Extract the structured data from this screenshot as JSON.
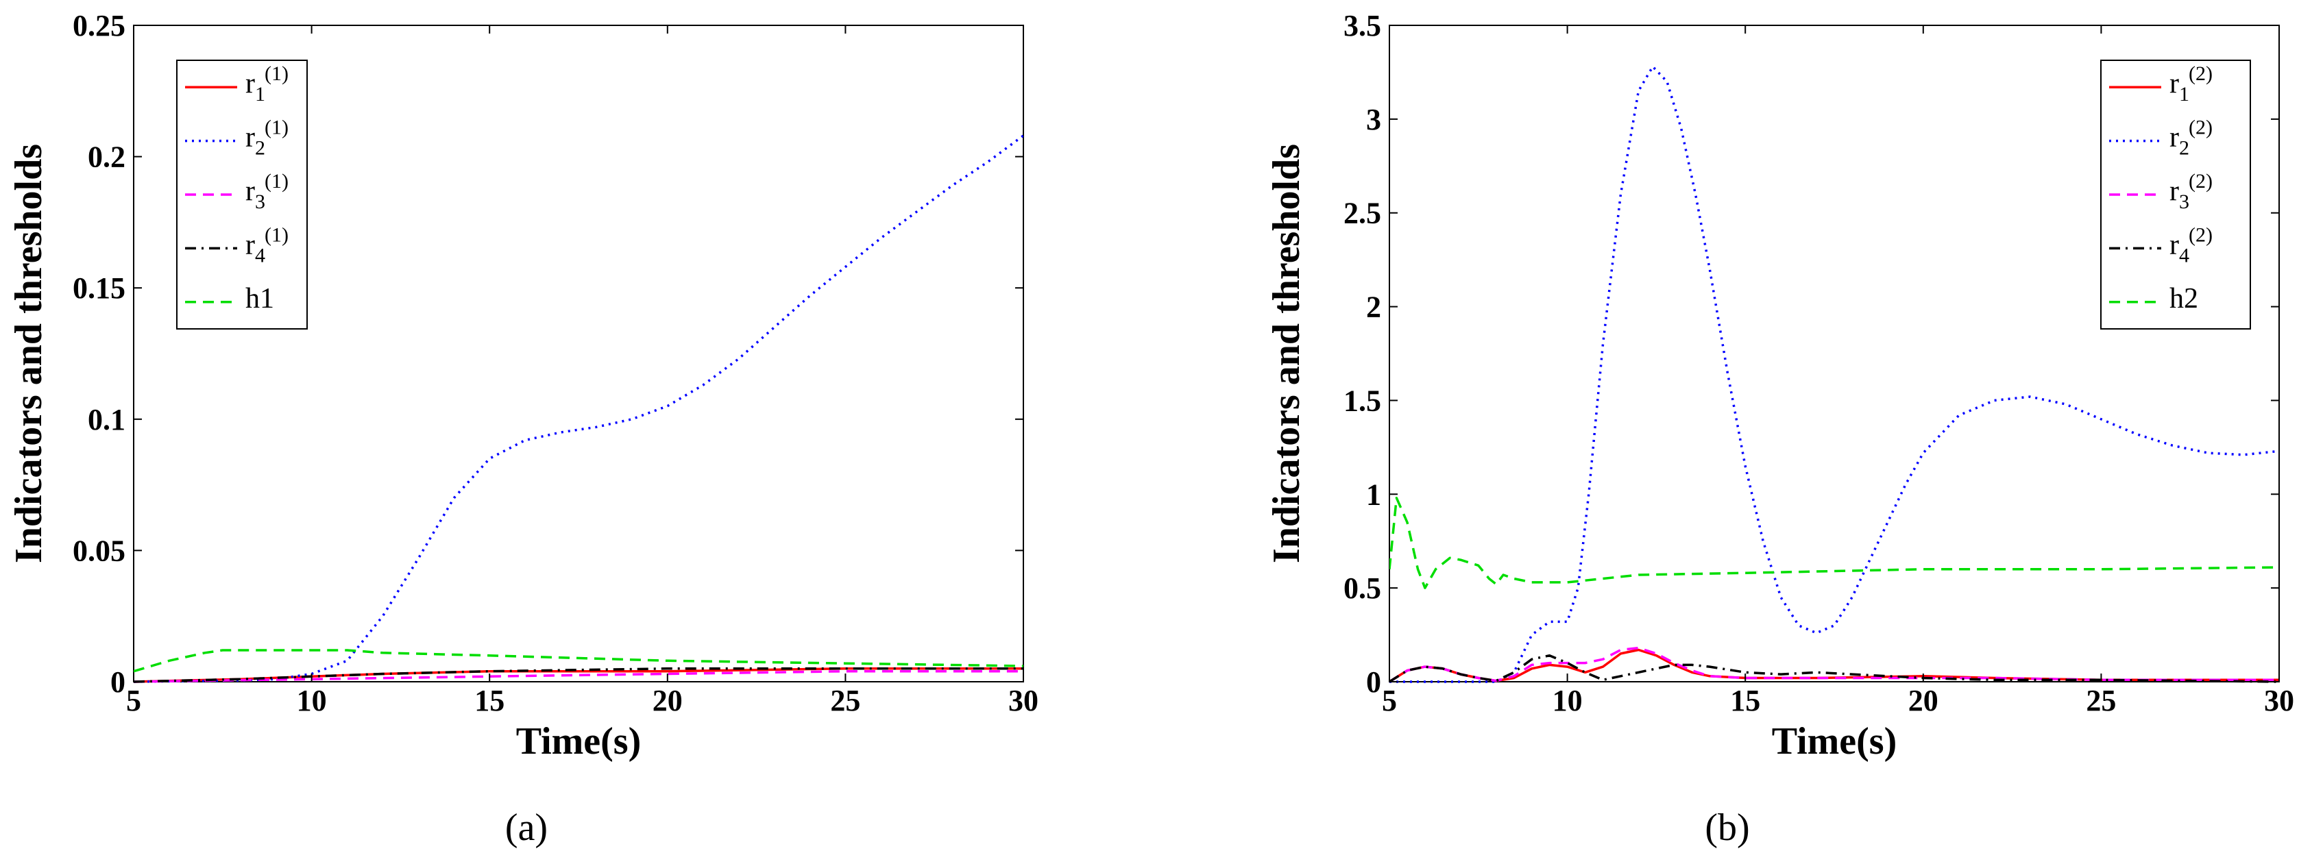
{
  "chart_data": [
    {
      "type": "line",
      "panel": "a",
      "caption": "(a)",
      "xlabel": "Time(s)",
      "ylabel": "Indicators and thresholds",
      "xlim": [
        5,
        30
      ],
      "ylim": [
        0,
        0.25
      ],
      "xticks": [
        5,
        10,
        15,
        20,
        25,
        30
      ],
      "xtick_labels": [
        "5",
        "10",
        "15",
        "20",
        "25",
        "30"
      ],
      "yticks": [
        0,
        0.05,
        0.1,
        0.15,
        0.2,
        0.25
      ],
      "ytick_labels": [
        "0",
        "0.05",
        "0.1",
        "0.15",
        "0.2",
        "0.25"
      ],
      "grid": false,
      "legend_position": "top-left",
      "series": [
        {
          "name": "r",
          "sub": "1",
          "sup": "(1)",
          "color": "#ff0000",
          "dash": "solid",
          "x": [
            5,
            8,
            10,
            12,
            15,
            20,
            25,
            30
          ],
          "y": [
            0,
            0.001,
            0.002,
            0.003,
            0.004,
            0.004,
            0.005,
            0.005
          ]
        },
        {
          "name": "r",
          "sub": "2",
          "sup": "(1)",
          "color": "#0000ff",
          "dash": "dot",
          "x": [
            5,
            8,
            9,
            10,
            11,
            12,
            13,
            14,
            15,
            16,
            17,
            18,
            19,
            20,
            21,
            22,
            23,
            24,
            25,
            26,
            27,
            28,
            29,
            30
          ],
          "y": [
            0,
            0.0005,
            0.001,
            0.003,
            0.008,
            0.025,
            0.047,
            0.07,
            0.085,
            0.092,
            0.095,
            0.097,
            0.1,
            0.105,
            0.113,
            0.123,
            0.135,
            0.147,
            0.158,
            0.169,
            0.179,
            0.189,
            0.198,
            0.208
          ]
        },
        {
          "name": "r",
          "sub": "3",
          "sup": "(1)",
          "color": "#ff00ff",
          "dash": "dash",
          "x": [
            5,
            10,
            15,
            20,
            25,
            30
          ],
          "y": [
            0,
            0.001,
            0.002,
            0.003,
            0.004,
            0.004
          ]
        },
        {
          "name": "r",
          "sub": "4",
          "sup": "(1)",
          "color": "#000000",
          "dash": "dashdot",
          "x": [
            5,
            8,
            10,
            12,
            15,
            20,
            25,
            30
          ],
          "y": [
            0,
            0.001,
            0.002,
            0.003,
            0.004,
            0.005,
            0.005,
            0.005
          ]
        },
        {
          "name": "h1",
          "sub": "",
          "sup": "",
          "color": "#00dd00",
          "dash": "dash",
          "x": [
            5,
            6,
            7,
            7.5,
            8,
            10,
            11,
            12,
            15,
            20,
            25,
            30
          ],
          "y": [
            0.004,
            0.008,
            0.011,
            0.012,
            0.012,
            0.012,
            0.012,
            0.011,
            0.01,
            0.008,
            0.007,
            0.006
          ]
        }
      ]
    },
    {
      "type": "line",
      "panel": "b",
      "caption": "(b)",
      "xlabel": "Time(s)",
      "ylabel": "Indicators and thresholds",
      "xlim": [
        5,
        30
      ],
      "ylim": [
        0,
        3.5
      ],
      "xticks": [
        5,
        10,
        15,
        20,
        25,
        30
      ],
      "xtick_labels": [
        "5",
        "10",
        "15",
        "20",
        "25",
        "30"
      ],
      "yticks": [
        0,
        0.5,
        1,
        1.5,
        2,
        2.5,
        3,
        3.5
      ],
      "ytick_labels": [
        "0",
        "0.5",
        "1",
        "1.5",
        "2",
        "2.5",
        "3",
        "3.5"
      ],
      "grid": false,
      "legend_position": "top-right",
      "series": [
        {
          "name": "r",
          "sub": "1",
          "sup": "(2)",
          "color": "#ff0000",
          "dash": "solid",
          "x": [
            5,
            5.5,
            6,
            6.5,
            7,
            7.5,
            8,
            8.5,
            9,
            9.5,
            10,
            10.5,
            11,
            11.5,
            12,
            12.5,
            13,
            13.5,
            14,
            15,
            17,
            20,
            22,
            25,
            30
          ],
          "y": [
            0,
            0.06,
            0.08,
            0.07,
            0.04,
            0.02,
            0.005,
            0.02,
            0.07,
            0.09,
            0.08,
            0.05,
            0.08,
            0.15,
            0.17,
            0.14,
            0.09,
            0.05,
            0.03,
            0.02,
            0.02,
            0.03,
            0.02,
            0.01,
            0.01
          ]
        },
        {
          "name": "r",
          "sub": "2",
          "sup": "(2)",
          "color": "#0000ff",
          "dash": "dot",
          "x": [
            5,
            8,
            8.5,
            9,
            9.5,
            10,
            10.3,
            10.6,
            11,
            11.5,
            12,
            12.4,
            12.8,
            13.2,
            13.6,
            14,
            14.5,
            15,
            15.5,
            16,
            16.5,
            17,
            17.5,
            18,
            18.5,
            19,
            19.5,
            20,
            21,
            22,
            23,
            24,
            25,
            26,
            27,
            28,
            29,
            30
          ],
          "y": [
            0,
            0,
            0.05,
            0.25,
            0.32,
            0.32,
            0.5,
            1.0,
            1.8,
            2.6,
            3.15,
            3.28,
            3.2,
            2.95,
            2.6,
            2.2,
            1.65,
            1.15,
            0.75,
            0.45,
            0.3,
            0.26,
            0.3,
            0.45,
            0.65,
            0.85,
            1.05,
            1.22,
            1.42,
            1.5,
            1.52,
            1.48,
            1.4,
            1.32,
            1.26,
            1.22,
            1.21,
            1.23
          ]
        },
        {
          "name": "r",
          "sub": "3",
          "sup": "(2)",
          "color": "#ff00ff",
          "dash": "dash",
          "x": [
            5,
            5.5,
            6,
            6.5,
            7,
            7.5,
            8,
            8.5,
            9,
            9.5,
            10,
            10.5,
            11,
            11.5,
            12,
            12.5,
            13,
            13.5,
            14,
            15,
            17,
            20,
            22,
            25,
            30
          ],
          "y": [
            0,
            0.06,
            0.08,
            0.07,
            0.04,
            0.02,
            0.005,
            0.03,
            0.09,
            0.1,
            0.1,
            0.1,
            0.12,
            0.17,
            0.18,
            0.15,
            0.1,
            0.06,
            0.03,
            0.02,
            0.02,
            0.02,
            0.02,
            0.01,
            0.01
          ]
        },
        {
          "name": "r",
          "sub": "4",
          "sup": "(2)",
          "color": "#000000",
          "dash": "dashdot",
          "x": [
            5,
            5.5,
            6,
            6.5,
            7,
            7.5,
            8,
            8.5,
            9,
            9.5,
            10,
            10.5,
            11,
            11.5,
            12,
            12.5,
            13,
            13.5,
            14,
            15,
            16,
            17,
            18,
            20,
            22,
            25,
            30
          ],
          "y": [
            0,
            0.06,
            0.08,
            0.07,
            0.04,
            0.02,
            0.005,
            0.05,
            0.12,
            0.14,
            0.1,
            0.05,
            0.01,
            0.03,
            0.05,
            0.07,
            0.09,
            0.09,
            0.08,
            0.05,
            0.04,
            0.05,
            0.04,
            0.02,
            0.01,
            0.01,
            0.0
          ]
        },
        {
          "name": "h2",
          "sub": "",
          "sup": "",
          "color": "#00dd00",
          "dash": "dash",
          "x": [
            5,
            5.2,
            5.5,
            5.8,
            6,
            6.3,
            6.7,
            7,
            7.5,
            7.8,
            8,
            8.2,
            8.5,
            9,
            10,
            11,
            12,
            15,
            20,
            25,
            30
          ],
          "y": [
            0.6,
            0.98,
            0.85,
            0.6,
            0.5,
            0.6,
            0.66,
            0.65,
            0.62,
            0.55,
            0.52,
            0.57,
            0.55,
            0.53,
            0.53,
            0.55,
            0.57,
            0.58,
            0.6,
            0.6,
            0.61
          ]
        }
      ]
    }
  ]
}
